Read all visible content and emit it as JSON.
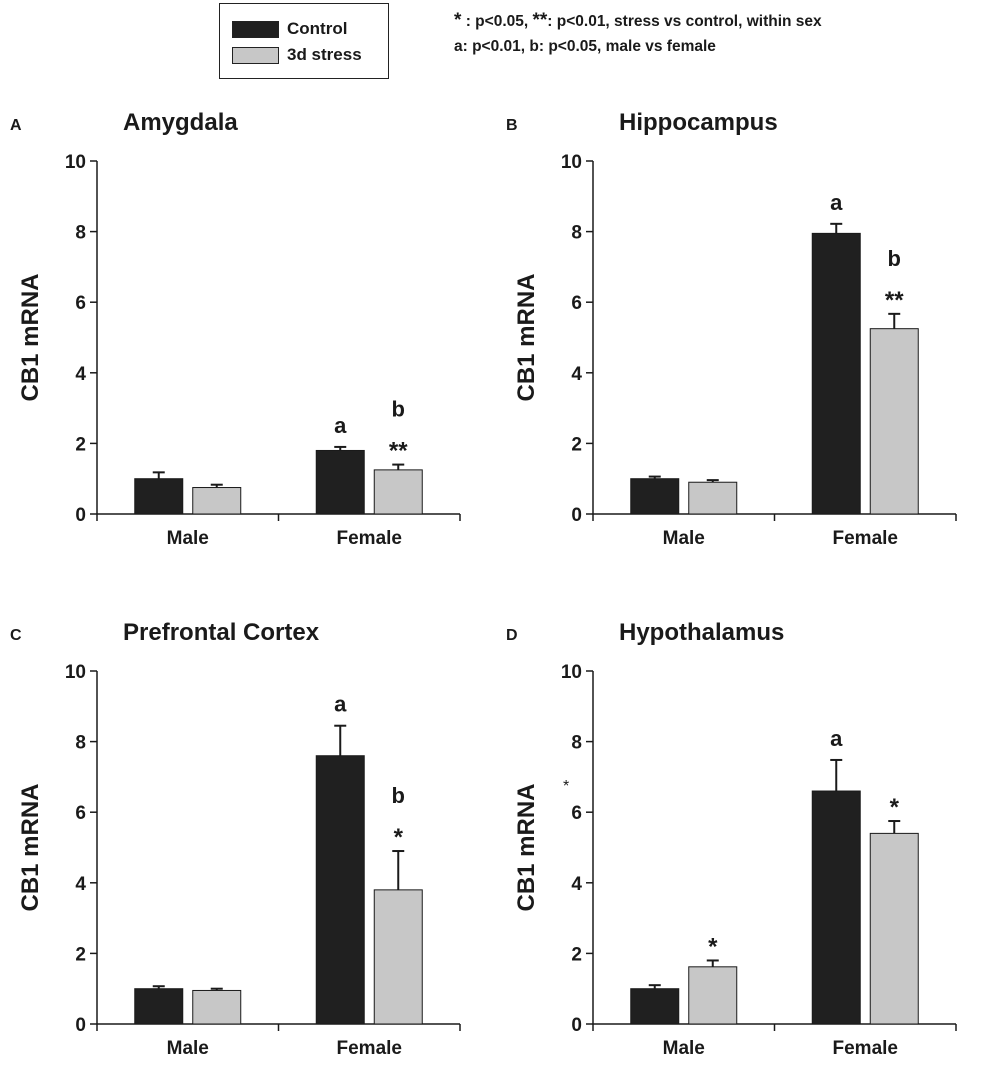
{
  "colors": {
    "control": "#202020",
    "stress": "#c7c7c7",
    "axis": "#1a1a1a"
  },
  "legend": {
    "items": [
      {
        "label": "Control",
        "color": "#202020"
      },
      {
        "label": "3d stress",
        "color": "#c7c7c7"
      }
    ]
  },
  "notes": {
    "line1_star": "*",
    "line1_a": " : p<0.05, ",
    "line1_star2": "**",
    "line1_b": ": p<0.01, stress vs control, within sex",
    "line2": "a: p<0.01, b: p<0.05, male vs female"
  },
  "stray_mark": "*",
  "chart_data": [
    {
      "panel": "A",
      "type": "bar",
      "title": "Amygdala",
      "ylabel": "CB1 mRNA",
      "ylim": [
        0,
        10
      ],
      "yticks": [
        0,
        2,
        4,
        6,
        8,
        10
      ],
      "categories": [
        "Male",
        "Female"
      ],
      "series": [
        {
          "name": "Control",
          "values": [
            1.0,
            1.8
          ],
          "errors": [
            0.18,
            0.1
          ],
          "annotations": [
            "",
            "a"
          ]
        },
        {
          "name": "3d stress",
          "values": [
            0.75,
            1.25
          ],
          "errors": [
            0.08,
            0.15
          ],
          "annotations": [
            "",
            "b\n**"
          ]
        }
      ]
    },
    {
      "panel": "B",
      "type": "bar",
      "title": "Hippocampus",
      "ylabel": "CB1 mRNA",
      "ylim": [
        0,
        10
      ],
      "yticks": [
        0,
        2,
        4,
        6,
        8,
        10
      ],
      "categories": [
        "Male",
        "Female"
      ],
      "series": [
        {
          "name": "Control",
          "values": [
            1.0,
            7.95
          ],
          "errors": [
            0.06,
            0.27
          ],
          "annotations": [
            "",
            "a"
          ]
        },
        {
          "name": "3d stress",
          "values": [
            0.9,
            5.25
          ],
          "errors": [
            0.06,
            0.42
          ],
          "annotations": [
            "",
            "b\n**"
          ]
        }
      ]
    },
    {
      "panel": "C",
      "type": "bar",
      "title": "Prefrontal Cortex",
      "ylabel": "CB1 mRNA",
      "ylim": [
        0,
        10
      ],
      "yticks": [
        0,
        2,
        4,
        6,
        8,
        10
      ],
      "categories": [
        "Male",
        "Female"
      ],
      "series": [
        {
          "name": "Control",
          "values": [
            1.0,
            7.6
          ],
          "errors": [
            0.07,
            0.85
          ],
          "annotations": [
            "",
            "a"
          ]
        },
        {
          "name": "3d stress",
          "values": [
            0.95,
            3.8
          ],
          "errors": [
            0.05,
            1.1
          ],
          "annotations": [
            "",
            "b\n*"
          ]
        }
      ]
    },
    {
      "panel": "D",
      "type": "bar",
      "title": "Hypothalamus",
      "ylabel": "CB1 mRNA",
      "ylim": [
        0,
        10
      ],
      "yticks": [
        0,
        2,
        4,
        6,
        8,
        10
      ],
      "categories": [
        "Male",
        "Female"
      ],
      "series": [
        {
          "name": "Control",
          "values": [
            1.0,
            6.6
          ],
          "errors": [
            0.1,
            0.88
          ],
          "annotations": [
            "",
            "a"
          ]
        },
        {
          "name": "3d stress",
          "values": [
            1.62,
            5.4
          ],
          "errors": [
            0.18,
            0.35
          ],
          "annotations": [
            "*",
            "*"
          ]
        }
      ]
    }
  ]
}
